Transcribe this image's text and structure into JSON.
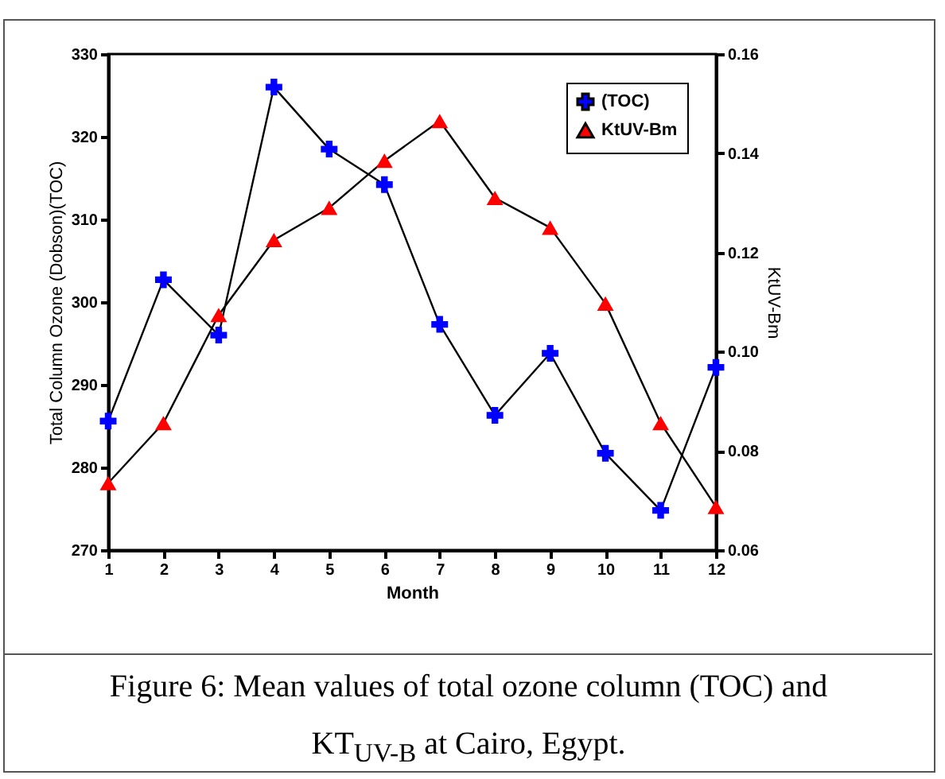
{
  "chart_data": {
    "type": "line",
    "xlabel": "Month",
    "ylabel": "Total Column Ozone (Dobson)(TOC)",
    "y2label": "KtUV-Bm",
    "x": [
      1,
      2,
      3,
      4,
      5,
      6,
      7,
      8,
      9,
      10,
      11,
      12
    ],
    "xlim": [
      1,
      12
    ],
    "xticks": [
      1,
      2,
      3,
      4,
      5,
      6,
      7,
      8,
      9,
      10,
      11,
      12
    ],
    "ylim": [
      270,
      330
    ],
    "yticks": [
      270,
      280,
      290,
      300,
      310,
      320,
      330
    ],
    "y2lim": [
      0.06,
      0.16
    ],
    "y2ticks": [
      0.06,
      0.08,
      {
        "value": 0.1,
        "label": "0.10"
      },
      0.12,
      0.14,
      0.16
    ],
    "legend": "top right",
    "grid": false,
    "line_style": "solid",
    "series": [
      {
        "name": "(TOC)",
        "color": "#0000ff",
        "marker": "cross",
        "values": [
          285.6,
          302.7,
          296,
          326,
          318.5,
          314.2,
          297.3,
          286.3,
          293.8,
          281.7,
          274.8,
          292.1
        ]
      },
      {
        "name": "KtUV-Bm",
        "color": "#ff0000",
        "marker": "triangle",
        "axis": "y2",
        "values": [
          0.0735,
          0.0856,
          0.1074,
          0.1225,
          0.129,
          0.1385,
          0.1465,
          0.131,
          0.125,
          0.1097,
          0.0856,
          0.0687
        ]
      }
    ],
    "annotations": [
      "Figure 6: Mean values of total ozone column (TOC) and KT$_{UV-B}$ at Cairo, Egypt."
    ]
  }
}
